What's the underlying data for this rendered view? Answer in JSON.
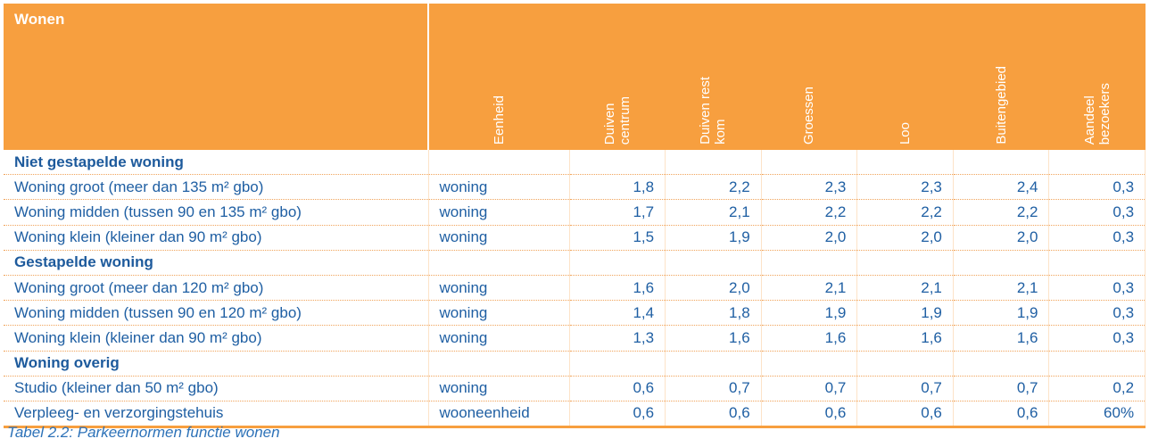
{
  "table": {
    "title": "Wonen",
    "columns": [
      "Eenheid",
      "Duiven\ncentrum",
      "Duiven rest\nkom",
      "Groessen",
      "Loo",
      "Buitengebied",
      "Aandeel\nbezoekers"
    ],
    "rows": [
      {
        "type": "group",
        "label": "Niet gestapelde woning"
      },
      {
        "type": "row",
        "label": "Woning groot (meer dan 135 m² gbo)",
        "unit": "woning",
        "values": [
          "1,8",
          "2,2",
          "2,3",
          "2,3",
          "2,4",
          "0,3"
        ]
      },
      {
        "type": "row",
        "label": "Woning midden (tussen 90 en 135 m² gbo)",
        "unit": "woning",
        "values": [
          "1,7",
          "2,1",
          "2,2",
          "2,2",
          "2,2",
          "0,3"
        ]
      },
      {
        "type": "row",
        "label": "Woning klein (kleiner dan 90 m² gbo)",
        "unit": "woning",
        "values": [
          "1,5",
          "1,9",
          "2,0",
          "2,0",
          "2,0",
          "0,3"
        ]
      },
      {
        "type": "group",
        "label": "Gestapelde woning"
      },
      {
        "type": "row",
        "label": "Woning groot (meer dan 120 m² gbo)",
        "unit": "woning",
        "values": [
          "1,6",
          "2,0",
          "2,1",
          "2,1",
          "2,1",
          "0,3"
        ]
      },
      {
        "type": "row",
        "label": "Woning midden (tussen 90 en 120 m² gbo)",
        "unit": "woning",
        "values": [
          "1,4",
          "1,8",
          "1,9",
          "1,9",
          "1,9",
          "0,3"
        ]
      },
      {
        "type": "row",
        "label": "Woning klein (kleiner dan 90 m² gbo)",
        "unit": "woning",
        "values": [
          "1,3",
          "1,6",
          "1,6",
          "1,6",
          "1,6",
          "0,3"
        ]
      },
      {
        "type": "group",
        "label": "Woning overig"
      },
      {
        "type": "row",
        "label": "Studio (kleiner dan 50 m² gbo)",
        "unit": "woning",
        "values": [
          "0,6",
          "0,7",
          "0,7",
          "0,7",
          "0,7",
          "0,2"
        ]
      },
      {
        "type": "row",
        "label": "Verpleeg- en verzorgingstehuis",
        "unit": "wooneenheid",
        "values": [
          "0,6",
          "0,6",
          "0,6",
          "0,6",
          "0,6",
          "60%"
        ]
      }
    ]
  },
  "caption": "Tabel 2.2: Parkeernormen functie wonen",
  "colors": {
    "header_bg": "#f79f3f",
    "text": "#1f5fa3",
    "divider": "#f0a35a"
  }
}
